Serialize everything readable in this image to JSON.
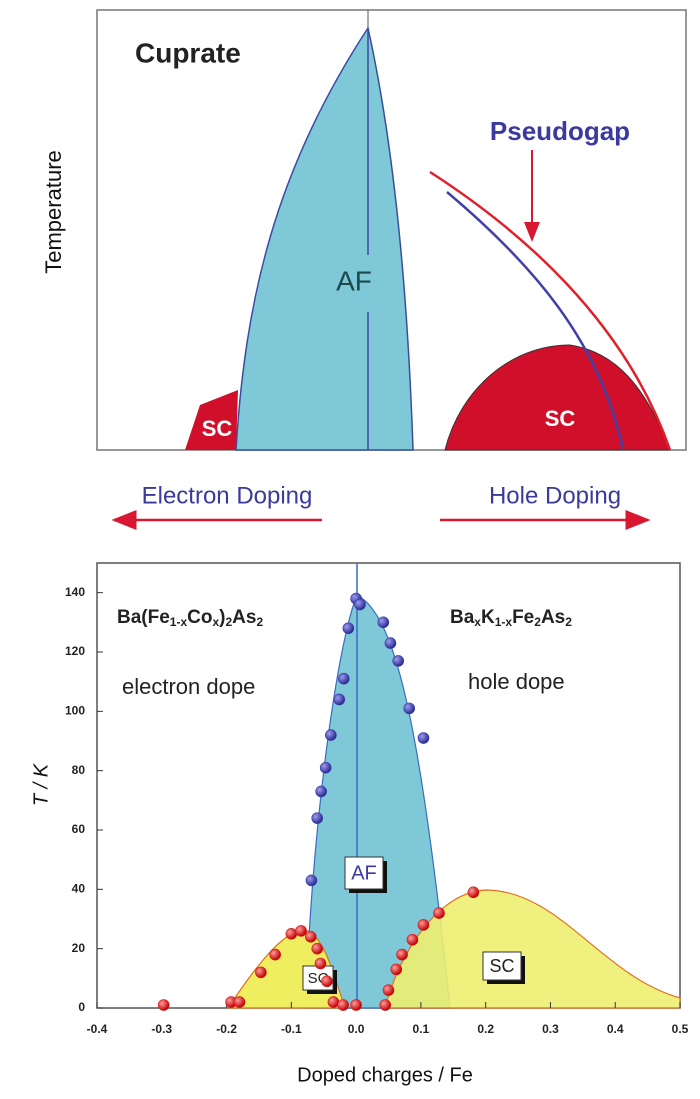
{
  "chart_data": [
    {
      "type": "schematic",
      "title": "Cuprate",
      "ylabel": "Temperature",
      "annotations": [
        "AF",
        "SC",
        "SC",
        "Pseudogap"
      ],
      "arrows": [
        "Electron Doping",
        "Hole Doping"
      ]
    },
    {
      "type": "scatter",
      "xlabel": "Doped charges / Fe",
      "ylabel": "T / K",
      "xlim": [
        -0.4,
        0.5
      ],
      "ylim": [
        0,
        150
      ],
      "xticks": [
        -0.4,
        -0.3,
        -0.2,
        -0.1,
        {
          "value": 0,
          "label": "0.0"
        },
        0.1,
        0.2,
        0.3,
        0.4,
        0.5
      ],
      "yticks": [
        0,
        20,
        40,
        60,
        80,
        100,
        120,
        140
      ],
      "formula_left": [
        "Ba(Fe",
        "1-x",
        "Co",
        "x",
        ")",
        "2",
        "As",
        "2"
      ],
      "formula_right": [
        "Ba",
        "x",
        "K",
        "1-x",
        "Fe",
        "2",
        "As",
        "2"
      ],
      "annotations": [
        "electron dope",
        "hole dope",
        "AF",
        "SC",
        "SC"
      ],
      "series": [
        {
          "color": "#3b3ba8",
          "x": [
            0,
            0.006,
            0.042,
            0.053,
            0.065,
            0.082,
            0.104,
            -0.012,
            -0.019,
            -0.026,
            -0.039,
            -0.047,
            -0.054,
            -0.06,
            -0.069
          ],
          "values": [
            138,
            136,
            130,
            123,
            117,
            101,
            91,
            128,
            111,
            104,
            92,
            81,
            73,
            64,
            43
          ]
        },
        {
          "color": "#d81818",
          "x": [
            -0.297,
            -0.193,
            -0.18,
            -0.147,
            -0.125,
            -0.1,
            -0.085,
            -0.07,
            -0.06,
            -0.055,
            -0.045,
            -0.035,
            -0.02,
            0,
            0.045,
            0.05,
            0.062,
            0.071,
            0.087,
            0.104,
            0.128,
            0.181
          ],
          "values": [
            1,
            2,
            2,
            12,
            18,
            25,
            26,
            24,
            20,
            15,
            9,
            2,
            1,
            1,
            1,
            6,
            13,
            18,
            23,
            28,
            32,
            39
          ]
        }
      ]
    }
  ]
}
